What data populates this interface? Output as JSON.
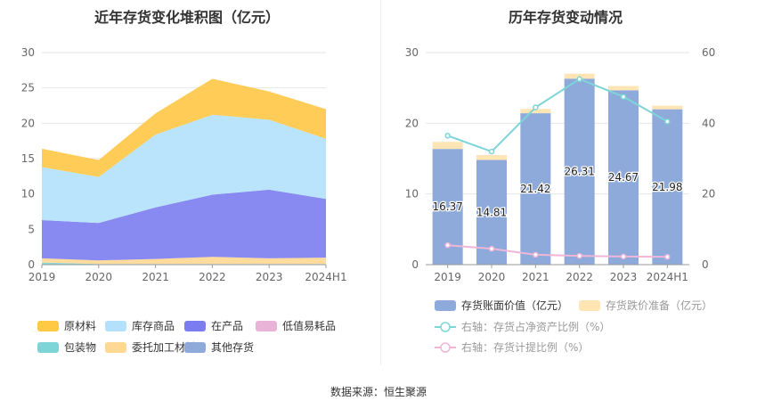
{
  "left_title": "近年存货变化堆积图（亿元）",
  "right_title": "历年存货变动情况",
  "source": "数据来源：恒生聚源",
  "colors": {
    "raw_material": "#ffc845",
    "finished_goods": "#b3e1fb",
    "wip": "#7b7cf0",
    "low_value": "#e8b3d6",
    "packaging": "#7dd5d8",
    "consigned": "#ffd894",
    "other": "#8eaadb",
    "bar_value": "#8eaadb",
    "bar_reserve": "#ffe5b4",
    "line_ratio_net": "#7dd5d8",
    "line_ratio_provision": "#f0b6d8"
  },
  "chart_data": [
    {
      "type": "area",
      "stacked": true,
      "title": "近年存货变化堆积图（亿元）",
      "x": [
        "2019",
        "2020",
        "2021",
        "2022",
        "2023",
        "2024H1"
      ],
      "ylim": [
        0,
        30
      ],
      "yticks": [
        0,
        5,
        10,
        15,
        20,
        25,
        30
      ],
      "legend_position": "bottom",
      "series": [
        {
          "key": "other",
          "name": "其他存货",
          "values": [
            0.0,
            0.0,
            0.0,
            0.0,
            0.0,
            0.0
          ]
        },
        {
          "key": "packaging",
          "name": "包装物",
          "values": [
            0.3,
            0.1,
            0.1,
            0.1,
            0.1,
            0.1
          ]
        },
        {
          "key": "consigned",
          "name": "委托加工材料",
          "values": [
            0.6,
            0.5,
            0.7,
            1.0,
            0.8,
            0.9
          ]
        },
        {
          "key": "low_value",
          "name": "低值易耗品",
          "values": [
            0.0,
            0.0,
            0.0,
            0.0,
            0.0,
            0.0
          ]
        },
        {
          "key": "wip",
          "name": "在产品",
          "values": [
            5.4,
            5.3,
            7.3,
            8.8,
            9.7,
            8.3
          ]
        },
        {
          "key": "finished_goods",
          "name": "库存商品",
          "values": [
            7.5,
            6.5,
            10.3,
            11.3,
            9.9,
            8.5
          ]
        },
        {
          "key": "raw_material",
          "name": "原材料",
          "values": [
            2.6,
            2.4,
            3.0,
            5.1,
            4.0,
            4.2
          ]
        }
      ],
      "legend_order": [
        "raw_material",
        "finished_goods",
        "wip",
        "low_value",
        "packaging",
        "consigned",
        "other"
      ]
    },
    {
      "type": "bar",
      "stacked": true,
      "title": "历年存货变动情况",
      "categories": [
        "2019",
        "2020",
        "2021",
        "2022",
        "2023",
        "2024H1"
      ],
      "ylim": [
        0,
        30
      ],
      "yticks": [
        0,
        10,
        20,
        30
      ],
      "y2lim": [
        0,
        60
      ],
      "y2ticks": [
        0,
        20,
        40,
        60
      ],
      "legend_position": "bottom",
      "series": [
        {
          "key": "bar_value",
          "name": "存货账面价值（亿元）",
          "values": [
            16.37,
            14.81,
            21.42,
            26.31,
            24.67,
            21.98
          ],
          "labels": [
            "16.37",
            "14.81",
            "21.42",
            "26.31",
            "24.67",
            "21.98"
          ]
        },
        {
          "key": "bar_reserve",
          "name": "存货跌价准备（亿元）",
          "values": [
            1.0,
            0.7,
            0.6,
            0.7,
            0.6,
            0.5
          ]
        }
      ],
      "lines": [
        {
          "key": "line_ratio_net",
          "name": "右轴：存货占净资产比例（%）",
          "axis": "right",
          "values": [
            36.5,
            32.0,
            44.5,
            52.5,
            47.5,
            40.5
          ]
        },
        {
          "key": "line_ratio_provision",
          "name": "右轴：存货计提比例（%）",
          "axis": "right",
          "values": [
            5.5,
            4.5,
            2.8,
            2.5,
            2.3,
            2.2
          ]
        }
      ]
    }
  ]
}
